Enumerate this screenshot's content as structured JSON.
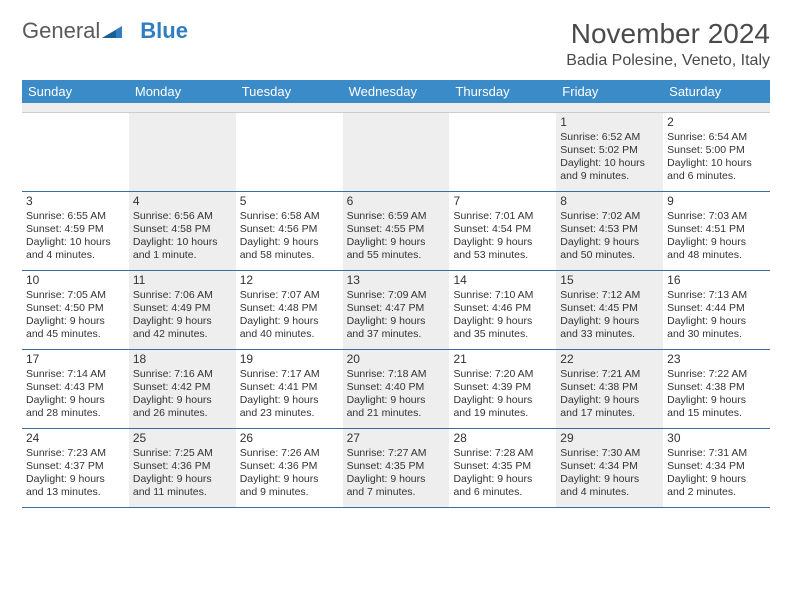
{
  "logo": {
    "text1": "General",
    "text2": "Blue"
  },
  "title": "November 2024",
  "location": "Badia Polesine, Veneto, Italy",
  "colors": {
    "header_bg": "#3b8bc9",
    "header_text": "#ffffff",
    "rule": "#3b6ea0",
    "shade": "#eeeeee",
    "text": "#333333",
    "logo_gray": "#5a5a5a",
    "logo_blue": "#2f7ec2",
    "background": "#ffffff"
  },
  "typography": {
    "title_fontsize": 28,
    "location_fontsize": 16,
    "dayhead_fontsize": 13,
    "daynum_fontsize": 12,
    "body_fontsize": 10.5
  },
  "day_names": [
    "Sunday",
    "Monday",
    "Tuesday",
    "Wednesday",
    "Thursday",
    "Friday",
    "Saturday"
  ],
  "weeks": [
    [
      {
        "n": "",
        "sr": "",
        "ss": "",
        "dl": ""
      },
      {
        "n": "",
        "sr": "",
        "ss": "",
        "dl": ""
      },
      {
        "n": "",
        "sr": "",
        "ss": "",
        "dl": ""
      },
      {
        "n": "",
        "sr": "",
        "ss": "",
        "dl": ""
      },
      {
        "n": "",
        "sr": "",
        "ss": "",
        "dl": ""
      },
      {
        "n": "1",
        "sr": "Sunrise: 6:52 AM",
        "ss": "Sunset: 5:02 PM",
        "dl": "Daylight: 10 hours and 9 minutes."
      },
      {
        "n": "2",
        "sr": "Sunrise: 6:54 AM",
        "ss": "Sunset: 5:00 PM",
        "dl": "Daylight: 10 hours and 6 minutes."
      }
    ],
    [
      {
        "n": "3",
        "sr": "Sunrise: 6:55 AM",
        "ss": "Sunset: 4:59 PM",
        "dl": "Daylight: 10 hours and 4 minutes."
      },
      {
        "n": "4",
        "sr": "Sunrise: 6:56 AM",
        "ss": "Sunset: 4:58 PM",
        "dl": "Daylight: 10 hours and 1 minute."
      },
      {
        "n": "5",
        "sr": "Sunrise: 6:58 AM",
        "ss": "Sunset: 4:56 PM",
        "dl": "Daylight: 9 hours and 58 minutes."
      },
      {
        "n": "6",
        "sr": "Sunrise: 6:59 AM",
        "ss": "Sunset: 4:55 PM",
        "dl": "Daylight: 9 hours and 55 minutes."
      },
      {
        "n": "7",
        "sr": "Sunrise: 7:01 AM",
        "ss": "Sunset: 4:54 PM",
        "dl": "Daylight: 9 hours and 53 minutes."
      },
      {
        "n": "8",
        "sr": "Sunrise: 7:02 AM",
        "ss": "Sunset: 4:53 PM",
        "dl": "Daylight: 9 hours and 50 minutes."
      },
      {
        "n": "9",
        "sr": "Sunrise: 7:03 AM",
        "ss": "Sunset: 4:51 PM",
        "dl": "Daylight: 9 hours and 48 minutes."
      }
    ],
    [
      {
        "n": "10",
        "sr": "Sunrise: 7:05 AM",
        "ss": "Sunset: 4:50 PM",
        "dl": "Daylight: 9 hours and 45 minutes."
      },
      {
        "n": "11",
        "sr": "Sunrise: 7:06 AM",
        "ss": "Sunset: 4:49 PM",
        "dl": "Daylight: 9 hours and 42 minutes."
      },
      {
        "n": "12",
        "sr": "Sunrise: 7:07 AM",
        "ss": "Sunset: 4:48 PM",
        "dl": "Daylight: 9 hours and 40 minutes."
      },
      {
        "n": "13",
        "sr": "Sunrise: 7:09 AM",
        "ss": "Sunset: 4:47 PM",
        "dl": "Daylight: 9 hours and 37 minutes."
      },
      {
        "n": "14",
        "sr": "Sunrise: 7:10 AM",
        "ss": "Sunset: 4:46 PM",
        "dl": "Daylight: 9 hours and 35 minutes."
      },
      {
        "n": "15",
        "sr": "Sunrise: 7:12 AM",
        "ss": "Sunset: 4:45 PM",
        "dl": "Daylight: 9 hours and 33 minutes."
      },
      {
        "n": "16",
        "sr": "Sunrise: 7:13 AM",
        "ss": "Sunset: 4:44 PM",
        "dl": "Daylight: 9 hours and 30 minutes."
      }
    ],
    [
      {
        "n": "17",
        "sr": "Sunrise: 7:14 AM",
        "ss": "Sunset: 4:43 PM",
        "dl": "Daylight: 9 hours and 28 minutes."
      },
      {
        "n": "18",
        "sr": "Sunrise: 7:16 AM",
        "ss": "Sunset: 4:42 PM",
        "dl": "Daylight: 9 hours and 26 minutes."
      },
      {
        "n": "19",
        "sr": "Sunrise: 7:17 AM",
        "ss": "Sunset: 4:41 PM",
        "dl": "Daylight: 9 hours and 23 minutes."
      },
      {
        "n": "20",
        "sr": "Sunrise: 7:18 AM",
        "ss": "Sunset: 4:40 PM",
        "dl": "Daylight: 9 hours and 21 minutes."
      },
      {
        "n": "21",
        "sr": "Sunrise: 7:20 AM",
        "ss": "Sunset: 4:39 PM",
        "dl": "Daylight: 9 hours and 19 minutes."
      },
      {
        "n": "22",
        "sr": "Sunrise: 7:21 AM",
        "ss": "Sunset: 4:38 PM",
        "dl": "Daylight: 9 hours and 17 minutes."
      },
      {
        "n": "23",
        "sr": "Sunrise: 7:22 AM",
        "ss": "Sunset: 4:38 PM",
        "dl": "Daylight: 9 hours and 15 minutes."
      }
    ],
    [
      {
        "n": "24",
        "sr": "Sunrise: 7:23 AM",
        "ss": "Sunset: 4:37 PM",
        "dl": "Daylight: 9 hours and 13 minutes."
      },
      {
        "n": "25",
        "sr": "Sunrise: 7:25 AM",
        "ss": "Sunset: 4:36 PM",
        "dl": "Daylight: 9 hours and 11 minutes."
      },
      {
        "n": "26",
        "sr": "Sunrise: 7:26 AM",
        "ss": "Sunset: 4:36 PM",
        "dl": "Daylight: 9 hours and 9 minutes."
      },
      {
        "n": "27",
        "sr": "Sunrise: 7:27 AM",
        "ss": "Sunset: 4:35 PM",
        "dl": "Daylight: 9 hours and 7 minutes."
      },
      {
        "n": "28",
        "sr": "Sunrise: 7:28 AM",
        "ss": "Sunset: 4:35 PM",
        "dl": "Daylight: 9 hours and 6 minutes."
      },
      {
        "n": "29",
        "sr": "Sunrise: 7:30 AM",
        "ss": "Sunset: 4:34 PM",
        "dl": "Daylight: 9 hours and 4 minutes."
      },
      {
        "n": "30",
        "sr": "Sunrise: 7:31 AM",
        "ss": "Sunset: 4:34 PM",
        "dl": "Daylight: 9 hours and 2 minutes."
      }
    ]
  ]
}
